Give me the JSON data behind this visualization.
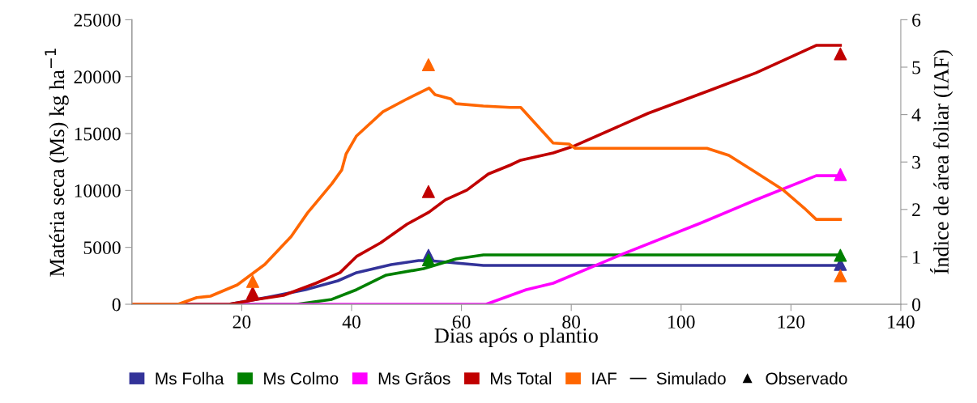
{
  "chart_data": {
    "type": "line",
    "xlabel": "Dias após o plantio",
    "ylabel": "Matéria seca (Ms) kg ha$^{−1}$",
    "y2label": "Índice de área foliar (IAF)",
    "xlim": [
      0,
      140
    ],
    "xticks": [
      20,
      40,
      60,
      80,
      100,
      120,
      140
    ],
    "ylim": [
      0,
      25000
    ],
    "yticks": [
      0,
      5000,
      10000,
      15000,
      20000,
      25000
    ],
    "y2lim": [
      0,
      6
    ],
    "y2ticks": [
      0,
      1,
      2,
      3,
      4,
      5,
      6
    ],
    "grid": false,
    "legend": "bottom",
    "line_style": "solid",
    "marker": "none",
    "annotations": [
      "Simulado",
      "Observado"
    ],
    "series": [
      {
        "name": "Ms Folha",
        "color": "#333399",
        "x": [
          0,
          17.7,
          25,
          31.6,
          37.5,
          40.9,
          47.2,
          52.2,
          54.1,
          59,
          64,
          129
        ],
        "values": [
          0,
          0,
          640,
          1280,
          2060,
          2780,
          3480,
          3840,
          3840,
          3630,
          3410,
          3410
        ]
      },
      {
        "name": "Ms Colmo",
        "color": "#008000",
        "x": [
          0,
          30,
          36.4,
          40.9,
          46.3,
          53.1,
          59,
          64,
          129
        ],
        "values": [
          0,
          0,
          430,
          1280,
          2560,
          3130,
          3980,
          4340,
          4340
        ]
      },
      {
        "name": "Ms Grãos",
        "color": "#ff00ff",
        "x": [
          0,
          64.5,
          71.8,
          76.7,
          89,
          103.8,
          113.6,
          124.6,
          129
        ],
        "values": [
          0,
          0,
          1280,
          1850,
          4340,
          7180,
          9170,
          11300,
          11300
        ]
      },
      {
        "name": "Ms Total",
        "color": "#c00000",
        "x": [
          0,
          17.7,
          22.7,
          27.6,
          33.5,
          37.9,
          40.9,
          45.3,
          50.1,
          54.1,
          57.1,
          61,
          64.9,
          68.9,
          70.8,
          76.7,
          80.7,
          94,
          104.7,
          113.6,
          124.6,
          129
        ],
        "values": [
          0,
          0,
          430,
          780,
          1850,
          2780,
          4200,
          5400,
          7040,
          8100,
          9180,
          10030,
          11450,
          12230,
          12660,
          13300,
          13940,
          16780,
          18700,
          20330,
          22750,
          22750
        ]
      },
      {
        "name": "IAF",
        "axis": "y2",
        "color": "#ff6600",
        "x": [
          0,
          8.4,
          11.8,
          14.3,
          19.2,
          24.2,
          29,
          32,
          36.4,
          38.2,
          39,
          40.9,
          45.7,
          50.1,
          54.1,
          55.2,
          58.1,
          59,
          64,
          68.9,
          70.8,
          76.7,
          79.6,
          80.7,
          104.7,
          108.7,
          113.6,
          118.6,
          122.4,
          124.6,
          129
        ],
        "values": [
          0,
          0,
          0.14,
          0.17,
          0.41,
          0.84,
          1.43,
          1.93,
          2.54,
          2.83,
          3.17,
          3.55,
          4.06,
          4.33,
          4.56,
          4.42,
          4.33,
          4.23,
          4.18,
          4.15,
          4.15,
          3.4,
          3.38,
          3.29,
          3.29,
          3.14,
          2.78,
          2.41,
          2.03,
          1.79,
          1.79
        ]
      },
      {
        "type": "scatter",
        "marker": "triangle",
        "color": "#333399",
        "x": [
          54,
          129
        ],
        "values": [
          4300,
          3500
        ]
      },
      {
        "type": "scatter",
        "marker": "triangle",
        "color": "#008000",
        "x": [
          54,
          129
        ],
        "values": [
          3900,
          4300
        ]
      },
      {
        "type": "scatter",
        "marker": "triangle",
        "color": "#ff00ff",
        "x": [
          129
        ],
        "values": [
          11400
        ]
      },
      {
        "type": "scatter",
        "marker": "triangle",
        "color": "#c00000",
        "x": [
          22,
          54,
          129
        ],
        "values": [
          1000,
          9900,
          22000
        ]
      },
      {
        "type": "scatter",
        "marker": "triangle",
        "axis": "y2",
        "color": "#ff6600",
        "x": [
          22,
          54,
          129
        ],
        "values": [
          0.48,
          5.05,
          0.6
        ]
      }
    ]
  }
}
